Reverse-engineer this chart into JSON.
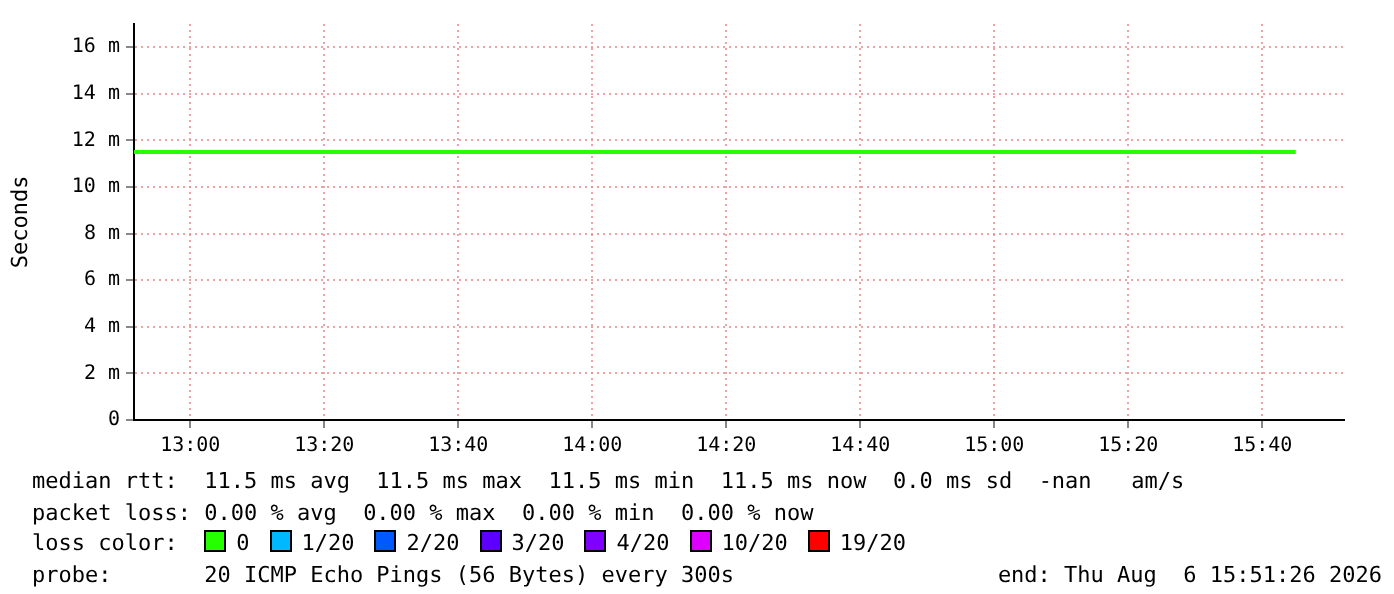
{
  "chart_data": {
    "type": "line",
    "ylabel": "Seconds",
    "x": [
      12.86,
      15.75
    ],
    "series": [
      {
        "name": "0",
        "color": "#26ff00",
        "values": [
          11.5,
          11.5
        ]
      },
      {
        "name": "1/20",
        "color": "#00b8ff",
        "values": [
          null,
          null
        ]
      },
      {
        "name": "2/20",
        "color": "#0059ff",
        "values": [
          null,
          null
        ]
      },
      {
        "name": "3/20",
        "color": "#5e00ff",
        "values": [
          null,
          null
        ]
      },
      {
        "name": "4/20",
        "color": "#7e00ff",
        "values": [
          null,
          null
        ]
      },
      {
        "name": "10/20",
        "color": "#dd00ff",
        "values": [
          null,
          null
        ]
      },
      {
        "name": "19/20",
        "color": "#ff0000",
        "values": [
          null,
          null
        ]
      }
    ],
    "xlim": [
      12.86,
      15.87
    ],
    "xticks": [
      {
        "value": 13,
        "label": "13:00"
      },
      {
        "value": 13.333333,
        "label": "13:20"
      },
      {
        "value": 13.666667,
        "label": "13:40"
      },
      {
        "value": 14,
        "label": "14:00"
      },
      {
        "value": 14.333333,
        "label": "14:20"
      },
      {
        "value": 14.666667,
        "label": "14:40"
      },
      {
        "value": 15,
        "label": "15:00"
      },
      {
        "value": 15.333333,
        "label": "15:20"
      },
      {
        "value": 15.666667,
        "label": "15:40"
      }
    ],
    "ylim": [
      0,
      17
    ],
    "yticks": [
      0,
      {
        "value": 2,
        "label": "2 m"
      },
      {
        "value": 4,
        "label": "4 m"
      },
      {
        "value": 6,
        "label": "6 m"
      },
      {
        "value": 8,
        "label": "8 m"
      },
      {
        "value": 10,
        "label": "10 m"
      },
      {
        "value": 12,
        "label": "12 m"
      },
      {
        "value": 14,
        "label": "14 m"
      },
      {
        "value": 16,
        "label": "16 m"
      }
    ],
    "grid": true,
    "legend": "bottom",
    "legend_title": "loss color:",
    "marker": "none",
    "line_style": "solid",
    "annotations": [
      "median rtt:  11.5 ms avg  11.5 ms max  11.5 ms min  11.5 ms now  0.0 ms sd  -nan   am/s",
      "packet loss: 0.00 % avg  0.00 % max  0.00 % min  0.00 % now",
      "probe:       20 ICMP Echo Pings (56 Bytes) every 300s",
      "end: Thu Aug  6 15:51:26 2026"
    ]
  }
}
